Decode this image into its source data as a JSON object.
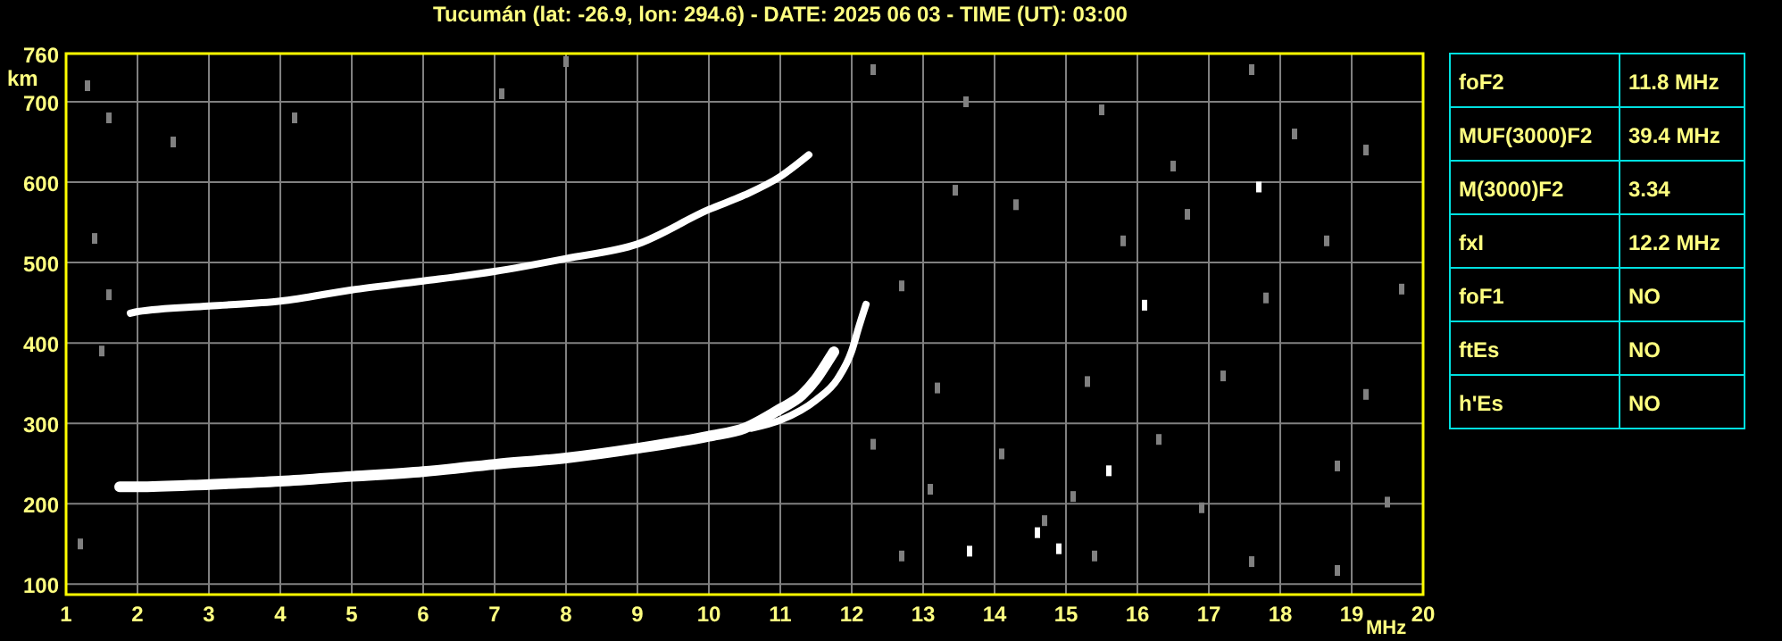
{
  "chart_data": [
    {
      "type": "line",
      "title": "Tucumán (lat: -26.9, lon: 294.6) - DATE: 2025 06 03 - TIME (UT): 03:00",
      "xlabel": "MHz",
      "ylabel": "km",
      "xlim": [
        1,
        20
      ],
      "ylim": [
        87,
        760
      ],
      "xticks": [
        1,
        2,
        3,
        4,
        5,
        6,
        7,
        8,
        9,
        10,
        11,
        12,
        13,
        14,
        15,
        16,
        17,
        18,
        19,
        20
      ],
      "yticks": [
        100,
        200,
        300,
        400,
        500,
        600,
        700,
        760
      ],
      "grid": true,
      "series": [
        {
          "type": "line",
          "color": "#ffffff",
          "x": [
            1.75,
            2,
            3,
            4,
            5,
            6,
            7,
            8,
            9,
            10,
            10.5,
            11,
            11.3,
            11.5,
            11.65,
            11.75
          ],
          "values": [
            221,
            221,
            224,
            228,
            234,
            240,
            249,
            257,
            269,
            284,
            294,
            318,
            335,
            355,
            375,
            389
          ]
        },
        {
          "type": "line",
          "color": "#ffffff",
          "x": [
            10.6,
            11,
            11.5,
            11.8,
            12,
            12.1,
            12.2
          ],
          "values": [
            294,
            304,
            329,
            355,
            390,
            420,
            448
          ]
        },
        {
          "type": "line",
          "color": "#ffffff",
          "x": [
            1.9,
            2,
            3,
            4,
            5,
            6,
            7,
            8,
            9,
            10,
            10.5,
            11,
            11.4
          ],
          "values": [
            437,
            439,
            446,
            452,
            466,
            477,
            489,
            505,
            523,
            566,
            584,
            607,
            634
          ]
        },
        {
          "type": "scatter",
          "color": "#808080",
          "marker": "square",
          "x": [
            12.7,
            13.45,
            14.3,
            15.8,
            16.7,
            18.65,
            19.7,
            17.8,
            13.2,
            15.3,
            17.2,
            19.2,
            12.3,
            14.1,
            16.3,
            18.8,
            13.1,
            15.1,
            16.9,
            19.5,
            12.7,
            15.4,
            17.6,
            18.8,
            14.7,
            12.3,
            13.6,
            17.6,
            19.2,
            15.5,
            16.5,
            18.2,
            1.3,
            1.6,
            1.4,
            2.5,
            1.2,
            1.5,
            4.2,
            7.1,
            8,
            1.6
          ],
          "values": [
            471,
            590,
            572,
            527,
            560,
            527,
            467,
            456,
            344,
            352,
            359,
            336,
            274,
            262,
            280,
            247,
            218,
            209,
            195,
            202,
            135,
            135,
            128,
            117,
            179,
            740,
            700,
            740,
            640,
            690,
            620,
            660,
            720,
            680,
            530,
            650,
            150,
            390,
            680,
            710,
            750,
            460
          ]
        },
        {
          "type": "scatter",
          "color": "#ffffff",
          "marker": "square",
          "x": [
            17.7,
            16.1,
            15.6,
            14.6,
            13.65,
            14.9
          ],
          "values": [
            594,
            447,
            241,
            164,
            141,
            144
          ]
        }
      ]
    },
    {
      "type": "other",
      "annotations": [
        "foF2",
        "11.8 MHz",
        "MUF(3000)F2",
        "39.4 MHz",
        "M(3000)F2",
        "3.34",
        "fxI",
        "12.2 MHz",
        "foF1",
        "NO",
        "ftEs",
        "NO",
        "h'Es",
        "NO"
      ]
    }
  ]
}
